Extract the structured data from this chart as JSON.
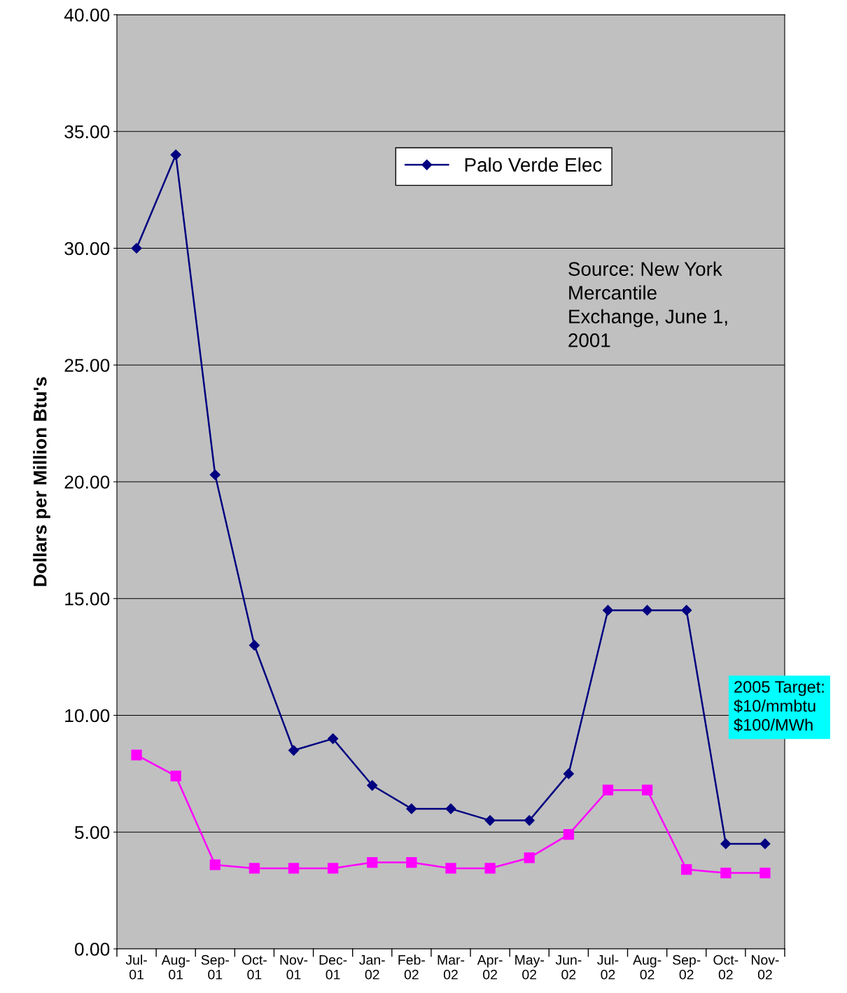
{
  "chart_data": {
    "type": "line",
    "ylabel": "Dollars per Million Btu's",
    "categories": [
      "Jul-01",
      "Aug-01",
      "Sep-01",
      "Oct-01",
      "Nov-01",
      "Dec-01",
      "Jan-02",
      "Feb-02",
      "Mar-02",
      "Apr-02",
      "May-02",
      "Jun-02",
      "Jul-02",
      "Aug-02",
      "Sep-02",
      "Oct-02",
      "Nov-02"
    ],
    "series": [
      {
        "name": "Palo Verde Elec",
        "color": "#000080",
        "marker": "diamond",
        "values": [
          30,
          34,
          20.3,
          13,
          8.5,
          9,
          7,
          6,
          6,
          5.5,
          5.5,
          7.5,
          14.5,
          14.5,
          14.5,
          4.5,
          4.5
        ]
      },
      {
        "color": "#ff00ff",
        "marker": "square",
        "values": [
          8.3,
          7.4,
          3.6,
          3.45,
          3.45,
          3.45,
          3.7,
          3.7,
          3.45,
          3.45,
          3.9,
          4.9,
          6.8,
          6.8,
          3.4,
          3.25,
          3.25
        ]
      }
    ],
    "ylim": [
      0,
      40
    ],
    "yticks": [
      {
        "value": 0,
        "label": "0.00"
      },
      {
        "value": 5,
        "label": "5.00"
      },
      {
        "value": 10,
        "label": "10.00"
      },
      {
        "value": 15,
        "label": "15.00"
      },
      {
        "value": 20,
        "label": "20.00"
      },
      {
        "value": 25,
        "label": "25.00"
      },
      {
        "value": 30,
        "label": "30.00"
      },
      {
        "value": 35,
        "label": "35.00"
      },
      {
        "value": 40,
        "label": "40.00"
      }
    ],
    "grid": "y",
    "legend": "top right",
    "annotations": [
      "Source: New York\nMercantile\nExchange, June 1,\n2001",
      "2005 Target:\n$10/mmbtu\n$100/MWh"
    ]
  }
}
